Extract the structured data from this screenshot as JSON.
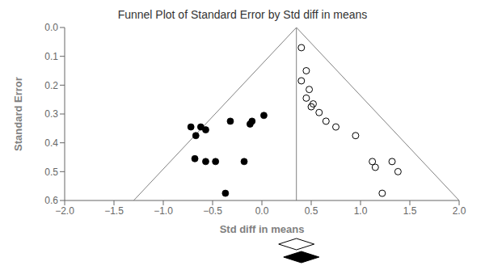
{
  "chart_data": {
    "type": "scatter",
    "title": "Funnel Plot of Standard Error by Std diff in means",
    "x_label": "Std diff in means",
    "y_label": "Standard Error",
    "xlim": [
      -2.0,
      2.0
    ],
    "ylim": [
      0.6,
      0.0
    ],
    "xticks": [
      {
        "value": -2.0,
        "label": "−2.0"
      },
      {
        "value": -1.5,
        "label": "−1.5"
      },
      {
        "value": -1.0,
        "label": "−1.0"
      },
      {
        "value": -0.5,
        "label": "−0.5"
      },
      {
        "value": 0.0,
        "label": "0.0"
      },
      0.5,
      {
        "value": 1.0,
        "label": "1.0"
      },
      1.5,
      {
        "value": 2.0,
        "label": "2.0"
      }
    ],
    "yticks": [
      {
        "value": 0.0,
        "label": "0.0"
      },
      0.1,
      0.2,
      0.3,
      0.4,
      0.5,
      0.6
    ],
    "grid": false,
    "series": [
      {
        "type": "line",
        "color": "#808080",
        "x": [
          0.35,
          -1.3
        ],
        "values": [
          0.0,
          0.6
        ]
      },
      {
        "type": "line",
        "color": "#808080",
        "x": [
          0.35,
          2.0
        ],
        "values": [
          0.0,
          0.6
        ]
      },
      {
        "type": "scatter",
        "marker": "open_circle",
        "color": "#000000",
        "x": [
          0.4,
          0.45,
          0.4,
          0.48,
          0.45,
          0.52,
          0.5,
          0.58,
          0.65,
          0.75,
          0.95,
          1.12,
          1.32,
          1.15,
          1.38,
          1.22
        ],
        "values": [
          0.07,
          0.15,
          0.185,
          0.215,
          0.245,
          0.265,
          0.275,
          0.295,
          0.325,
          0.345,
          0.375,
          0.465,
          0.465,
          0.485,
          0.5,
          0.575
        ]
      },
      {
        "type": "scatter",
        "marker": "circle",
        "color": "#000000",
        "x": [
          -0.72,
          -0.62,
          -0.67,
          -0.57,
          -0.57,
          -0.68,
          -0.47,
          -0.32,
          -0.12,
          -0.1,
          0.02,
          -0.18,
          -0.37
        ],
        "values": [
          0.345,
          0.345,
          0.375,
          0.355,
          0.465,
          0.455,
          0.465,
          0.325,
          0.335,
          0.325,
          0.305,
          0.465,
          0.575
        ]
      }
    ],
    "vlines": [
      {
        "x": 0.35,
        "color": "#808080"
      }
    ],
    "diamonds": [
      {
        "x": 0.35,
        "half_width": 0.18,
        "color": "#ffffff"
      },
      {
        "x": 0.4,
        "half_width": 0.18,
        "color": "#000000"
      }
    ]
  }
}
